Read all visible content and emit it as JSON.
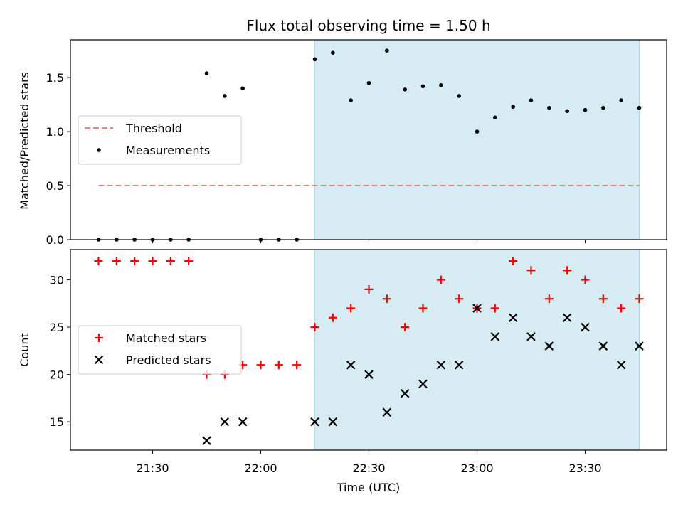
{
  "chart_data": {
    "title": "Flux total observing time = 1.50 h",
    "xlabel": "Time (UTC)",
    "x_ticks": [
      "21:30",
      "22:00",
      "22:30",
      "23:00",
      "23:30"
    ],
    "colors": {
      "highlight": "#add8e6",
      "threshold": "#f08080",
      "matched": "#ff0000",
      "points": "#000000"
    },
    "panels": [
      {
        "type": "scatter",
        "ylabel": "Matched/Predicted stars",
        "ylim": [
          0,
          1.85
        ],
        "y_ticks": [
          "0.0",
          "0.5",
          "1.0",
          "1.5"
        ],
        "highlight_span": [
          "22:15",
          "23:45"
        ],
        "legend_position": "center-left",
        "threshold": {
          "name": "Threshold",
          "value": 0.5,
          "x_range": [
            "21:15",
            "23:45"
          ]
        },
        "series": [
          {
            "name": "Measurements",
            "x": [
              "21:15",
              "21:20",
              "21:25",
              "21:30",
              "21:35",
              "21:40",
              "21:45",
              "21:50",
              "21:55",
              "22:00",
              "22:05",
              "22:10",
              "22:15",
              "22:20",
              "22:25",
              "22:30",
              "22:35",
              "22:40",
              "22:45",
              "22:50",
              "22:55",
              "23:00",
              "23:05",
              "23:10",
              "23:15",
              "23:20",
              "23:25",
              "23:30",
              "23:35",
              "23:40",
              "23:45"
            ],
            "y": [
              0,
              0,
              0,
              0,
              0,
              0,
              1.54,
              1.33,
              1.4,
              0,
              0,
              0,
              1.67,
              1.73,
              1.29,
              1.45,
              1.75,
              1.39,
              1.42,
              1.43,
              1.33,
              1.0,
              1.13,
              1.23,
              1.29,
              1.22,
              1.19,
              1.2,
              1.22,
              1.29,
              1.22
            ]
          }
        ]
      },
      {
        "type": "scatter",
        "ylabel": "Count",
        "ylim": [
          12,
          33.2
        ],
        "y_ticks": [
          "15",
          "20",
          "25",
          "30"
        ],
        "highlight_span": [
          "22:15",
          "23:45"
        ],
        "legend_position": "center-left",
        "series": [
          {
            "name": "Matched stars",
            "marker": "plus",
            "x": [
              "21:15",
              "21:20",
              "21:25",
              "21:30",
              "21:35",
              "21:40",
              "21:45",
              "21:50",
              "21:55",
              "22:00",
              "22:05",
              "22:10",
              "22:15",
              "22:20",
              "22:25",
              "22:30",
              "22:35",
              "22:40",
              "22:45",
              "22:50",
              "22:55",
              "23:00",
              "23:05",
              "23:10",
              "23:15",
              "23:20",
              "23:25",
              "23:30",
              "23:35",
              "23:40",
              "23:45"
            ],
            "y": [
              32,
              32,
              32,
              32,
              32,
              32,
              20,
              20,
              21,
              21,
              21,
              21,
              25,
              26,
              27,
              29,
              28,
              25,
              27,
              30,
              28,
              27,
              27,
              32,
              31,
              28,
              31,
              30,
              28,
              27,
              28
            ]
          },
          {
            "name": "Predicted stars",
            "marker": "x",
            "x": [
              "21:45",
              "21:50",
              "21:55",
              "22:15",
              "22:20",
              "22:25",
              "22:30",
              "22:35",
              "22:40",
              "22:45",
              "22:50",
              "22:55",
              "23:00",
              "23:05",
              "23:10",
              "23:15",
              "23:20",
              "23:25",
              "23:30",
              "23:35",
              "23:40",
              "23:45"
            ],
            "y": [
              13,
              15,
              15,
              15,
              15,
              21,
              20,
              16,
              18,
              19,
              21,
              21,
              27,
              24,
              26,
              24,
              23,
              26,
              25,
              23,
              21,
              23
            ]
          }
        ]
      }
    ]
  }
}
